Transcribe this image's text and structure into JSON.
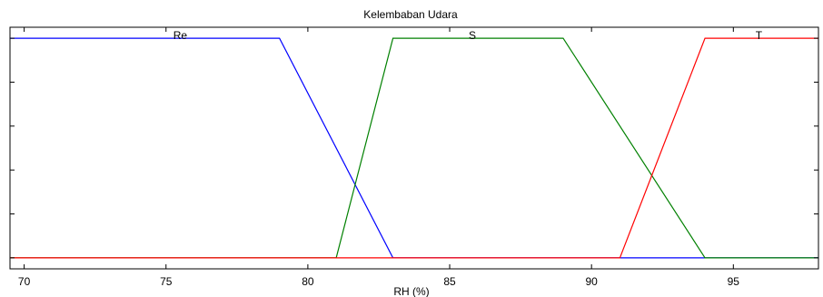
{
  "chart_data": {
    "type": "line",
    "title": "Kelembaban Udara",
    "xlabel": "RH (%)",
    "ylabel": "",
    "xlim": [
      69.5,
      98
    ],
    "ylim": [
      -0.05,
      1.05
    ],
    "xticks": [
      70,
      75,
      80,
      85,
      90,
      95
    ],
    "yticks": [
      0,
      0.2,
      0.4,
      0.6,
      0.8,
      1.0
    ],
    "grid": false,
    "series": [
      {
        "name": "Re",
        "color": "#0000ff",
        "points": [
          [
            69.5,
            1
          ],
          [
            79,
            1
          ],
          [
            83,
            0
          ],
          [
            98,
            0
          ]
        ]
      },
      {
        "name": "S",
        "color": "#008000",
        "points": [
          [
            69.5,
            0
          ],
          [
            81,
            0
          ],
          [
            83,
            1
          ],
          [
            89,
            1
          ],
          [
            94,
            0
          ],
          [
            98,
            0
          ]
        ]
      },
      {
        "name": "T",
        "color": "#ff0000",
        "points": [
          [
            69.5,
            0
          ],
          [
            91,
            0
          ],
          [
            94,
            1
          ],
          [
            98,
            1
          ]
        ]
      }
    ],
    "mf_labels": [
      {
        "text": "Re",
        "x": 75.5
      },
      {
        "text": "S",
        "x": 85.8
      },
      {
        "text": "T",
        "x": 95.9
      }
    ]
  }
}
